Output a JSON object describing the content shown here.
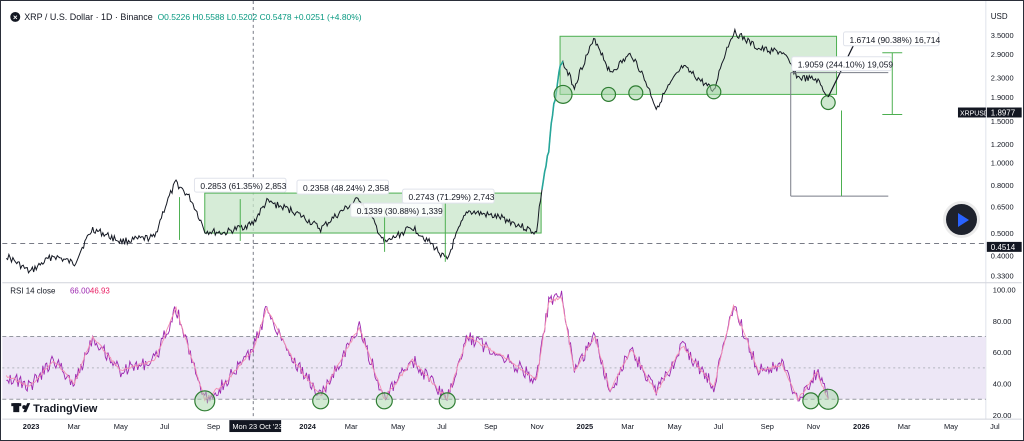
{
  "header": {
    "symbol": "XRP / U.S. Dollar · 1D · Binance",
    "ohlc": "O0.5226 H0.5588 L0.5202 C0.5478 +0.0251 (+4.80%)"
  },
  "price_axis": {
    "unit": "USD",
    "ticks": [
      "3.5000",
      "2.9000",
      "2.3000",
      "1.9000",
      "1.5000",
      "1.2000",
      "1.0000",
      "0.8000",
      "0.6500",
      "0.5000",
      "0.4000",
      "0.3300"
    ]
  },
  "rsi_axis": {
    "ticks": [
      "100.00",
      "80.00",
      "60.00",
      "40.00",
      "20.00"
    ]
  },
  "rsi_legend": {
    "name": "RSI 14 close",
    "value1": "66.00",
    "value2": "46.93"
  },
  "x_axis": {
    "ticks": [
      "2023",
      "Mar",
      "May",
      "Jul",
      "Sep",
      "Mon 23 Oct '23",
      "2024",
      "Mar",
      "May",
      "Jul",
      "Sep",
      "Nov",
      "2025",
      "Mar",
      "May",
      "Jul",
      "Sep",
      "Nov",
      "2026",
      "Mar",
      "May",
      "Jul"
    ]
  },
  "labels": {
    "last_price": "1.8977",
    "last_price_name": "XRPUSD",
    "hline_price": "0.4514"
  },
  "annotations": [
    {
      "text": "0.2853 (61.35%) 2,853"
    },
    {
      "text": "0.2358 (48.24%) 2,358"
    },
    {
      "text": "0.1339 (30.88%) 1,339"
    },
    {
      "text": "0.2743 (71.29%) 2,743"
    },
    {
      "text": "1.9059 (244.10%) 19,059"
    },
    {
      "text": "1.6714 (90.38%) 16,714"
    }
  ],
  "logo": "TradingView",
  "colors": {
    "up": "#26a69a",
    "zone_fill": "#c8e6c9",
    "zone_stroke": "#4caf50",
    "rsi_line": "#9c27b0",
    "rsi_ma": "#f48fb1",
    "rsi_band": "#ede7f6",
    "ohlc": "#089981"
  },
  "chart_data": {
    "type": "line",
    "title": "XRP / U.S. Dollar · 1D · Binance",
    "scale": "log",
    "ylim": [
      0.31,
      4.6
    ],
    "x_range": [
      "2022-12-01",
      "2026-07-15"
    ],
    "price_series": [
      {
        "date": "2022-12-01",
        "value": 0.4
      },
      {
        "date": "2023-01-01",
        "value": 0.34
      },
      {
        "date": "2023-02-01",
        "value": 0.4
      },
      {
        "date": "2023-03-01",
        "value": 0.37
      },
      {
        "date": "2023-03-25",
        "value": 0.52
      },
      {
        "date": "2023-05-01",
        "value": 0.46
      },
      {
        "date": "2023-06-15",
        "value": 0.48
      },
      {
        "date": "2023-07-13",
        "value": 0.82
      },
      {
        "date": "2023-08-01",
        "value": 0.7
      },
      {
        "date": "2023-08-20",
        "value": 0.51
      },
      {
        "date": "2023-09-15",
        "value": 0.5
      },
      {
        "date": "2023-10-23",
        "value": 0.55
      },
      {
        "date": "2023-11-10",
        "value": 0.68
      },
      {
        "date": "2023-12-15",
        "value": 0.62
      },
      {
        "date": "2024-01-20",
        "value": 0.52
      },
      {
        "date": "2024-03-11",
        "value": 0.7
      },
      {
        "date": "2024-04-13",
        "value": 0.45
      },
      {
        "date": "2024-05-20",
        "value": 0.53
      },
      {
        "date": "2024-07-05",
        "value": 0.38
      },
      {
        "date": "2024-08-01",
        "value": 0.62
      },
      {
        "date": "2024-09-15",
        "value": 0.58
      },
      {
        "date": "2024-10-31",
        "value": 0.5
      },
      {
        "date": "2024-11-16",
        "value": 1.1
      },
      {
        "date": "2024-12-03",
        "value": 2.7
      },
      {
        "date": "2024-12-20",
        "value": 2.1
      },
      {
        "date": "2025-01-16",
        "value": 3.35
      },
      {
        "date": "2025-02-05",
        "value": 2.4
      },
      {
        "date": "2025-03-05",
        "value": 2.9
      },
      {
        "date": "2025-04-07",
        "value": 1.7
      },
      {
        "date": "2025-05-12",
        "value": 2.55
      },
      {
        "date": "2025-06-22",
        "value": 2.0
      },
      {
        "date": "2025-07-18",
        "value": 3.6
      },
      {
        "date": "2025-08-20",
        "value": 3.05
      },
      {
        "date": "2025-09-20",
        "value": 2.95
      },
      {
        "date": "2025-10-11",
        "value": 2.3
      },
      {
        "date": "2025-11-05",
        "value": 2.25
      },
      {
        "date": "2025-11-20",
        "value": 1.9
      }
    ],
    "projection_path": [
      {
        "date": "2025-11-20",
        "value": 1.9
      },
      {
        "date": "2026-01-01",
        "value": 3.6
      }
    ],
    "horizontal_line": 0.4514,
    "zones": [
      {
        "x0": "2023-08-20",
        "x1": "2024-11-06",
        "y0": 0.5,
        "y1": 0.74
      },
      {
        "x0": "2024-12-01",
        "x1": "2025-12-01",
        "y0": 1.95,
        "y1": 3.45
      }
    ],
    "circles_price": [
      {
        "date": "2024-12-05",
        "value": 1.95
      },
      {
        "date": "2025-02-03",
        "value": 1.95
      },
      {
        "date": "2025-03-11",
        "value": 1.98
      },
      {
        "date": "2025-06-22",
        "value": 2.0
      },
      {
        "date": "2025-11-20",
        "value": 1.8
      }
    ],
    "rsi_series": [
      {
        "date": "2022-12-01",
        "value": 45
      },
      {
        "date": "2023-01-01",
        "value": 38
      },
      {
        "date": "2023-02-01",
        "value": 55
      },
      {
        "date": "2023-03-01",
        "value": 40
      },
      {
        "date": "2023-03-25",
        "value": 70
      },
      {
        "date": "2023-05-01",
        "value": 48
      },
      {
        "date": "2023-06-15",
        "value": 55
      },
      {
        "date": "2023-07-13",
        "value": 88
      },
      {
        "date": "2023-08-20",
        "value": 30
      },
      {
        "date": "2023-09-15",
        "value": 40
      },
      {
        "date": "2023-10-23",
        "value": 62
      },
      {
        "date": "2023-11-10",
        "value": 88
      },
      {
        "date": "2023-12-15",
        "value": 55
      },
      {
        "date": "2024-01-20",
        "value": 32
      },
      {
        "date": "2024-03-11",
        "value": 76
      },
      {
        "date": "2024-04-13",
        "value": 30
      },
      {
        "date": "2024-05-20",
        "value": 55
      },
      {
        "date": "2024-07-05",
        "value": 30
      },
      {
        "date": "2024-08-01",
        "value": 70
      },
      {
        "date": "2024-09-15",
        "value": 58
      },
      {
        "date": "2024-10-31",
        "value": 42
      },
      {
        "date": "2024-11-16",
        "value": 92
      },
      {
        "date": "2024-12-03",
        "value": 95
      },
      {
        "date": "2024-12-20",
        "value": 48
      },
      {
        "date": "2025-01-16",
        "value": 70
      },
      {
        "date": "2025-02-05",
        "value": 35
      },
      {
        "date": "2025-03-05",
        "value": 62
      },
      {
        "date": "2025-04-07",
        "value": 34
      },
      {
        "date": "2025-05-12",
        "value": 64
      },
      {
        "date": "2025-06-22",
        "value": 38
      },
      {
        "date": "2025-07-18",
        "value": 90
      },
      {
        "date": "2025-08-20",
        "value": 48
      },
      {
        "date": "2025-09-20",
        "value": 52
      },
      {
        "date": "2025-10-11",
        "value": 30
      },
      {
        "date": "2025-11-05",
        "value": 47
      },
      {
        "date": "2025-11-20",
        "value": 30
      }
    ],
    "rsi_levels": [
      30,
      50,
      70
    ],
    "rsi_ylim": [
      18,
      103
    ],
    "circles_rsi": [
      {
        "date": "2023-08-20",
        "value": 29
      },
      {
        "date": "2024-01-20",
        "value": 29
      },
      {
        "date": "2024-04-13",
        "value": 29
      },
      {
        "date": "2024-07-05",
        "value": 29
      },
      {
        "date": "2025-10-28",
        "value": 29
      },
      {
        "date": "2025-11-20",
        "value": 30
      }
    ]
  }
}
